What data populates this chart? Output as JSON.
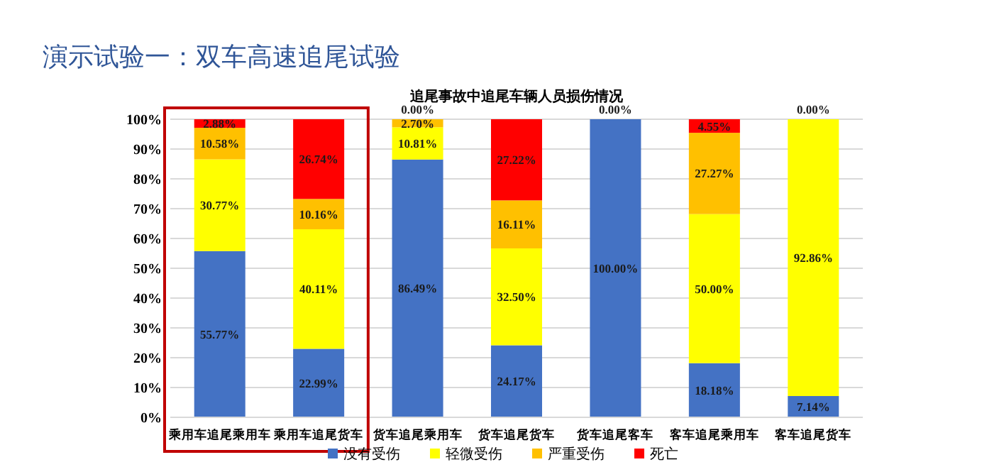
{
  "chart_data": {
    "type": "bar",
    "stacked": true,
    "title": "演示试验一：双车高速追尾试验",
    "subtitle": "追尾事故中追尾车辆人员损伤情况",
    "categories": [
      "乘用车追尾乘用车",
      "乘用车追尾货车",
      "货车追尾乘用车",
      "货车追尾货车",
      "货车追尾客车",
      "客车追尾乘用车",
      "客车追尾货车"
    ],
    "series": [
      {
        "name": "没有受伤",
        "color": "#4472c4",
        "values": [
          55.77,
          22.99,
          86.49,
          24.17,
          100.0,
          18.18,
          7.14
        ],
        "value_labels": [
          "55.77%",
          "22.99%",
          "86.49%",
          "24.17%",
          "100.00%",
          "18.18%",
          "7.14%"
        ]
      },
      {
        "name": "轻微受伤",
        "color": "#ffff00",
        "values": [
          30.77,
          40.11,
          10.81,
          32.5,
          0,
          50.0,
          92.86
        ],
        "value_labels": [
          "30.77%",
          "40.11%",
          "10.81%",
          "32.50%",
          null,
          "50.00%",
          "92.86%"
        ]
      },
      {
        "name": "严重受伤",
        "color": "#ffc000",
        "values": [
          10.58,
          10.16,
          2.7,
          16.11,
          0,
          27.27,
          0
        ],
        "value_labels": [
          "10.58%",
          "10.16%",
          "2.70%",
          "16.11%",
          null,
          "27.27%",
          null
        ]
      },
      {
        "name": "死亡",
        "color": "#ff0000",
        "values": [
          2.88,
          26.74,
          0.0,
          27.22,
          0.0,
          4.55,
          0.0
        ],
        "value_labels": [
          "2.88%",
          "26.74%",
          "0.00%",
          "27.22%",
          "0.00%",
          "4.55%",
          "0.00%"
        ]
      }
    ],
    "ylim": [
      0,
      100
    ],
    "yticks": [
      {
        "value": 0,
        "label": "0%"
      },
      {
        "value": 10,
        "label": "10%"
      },
      {
        "value": 20,
        "label": "20%"
      },
      {
        "value": 30,
        "label": "30%"
      },
      {
        "value": 40,
        "label": "40%"
      },
      {
        "value": 50,
        "label": "50%"
      },
      {
        "value": 60,
        "label": "60%"
      },
      {
        "value": 70,
        "label": "70%"
      },
      {
        "value": 80,
        "label": "80%"
      },
      {
        "value": 90,
        "label": "90%"
      },
      {
        "value": 100,
        "label": "100%"
      }
    ],
    "grid": "y",
    "legend": "bottom"
  }
}
